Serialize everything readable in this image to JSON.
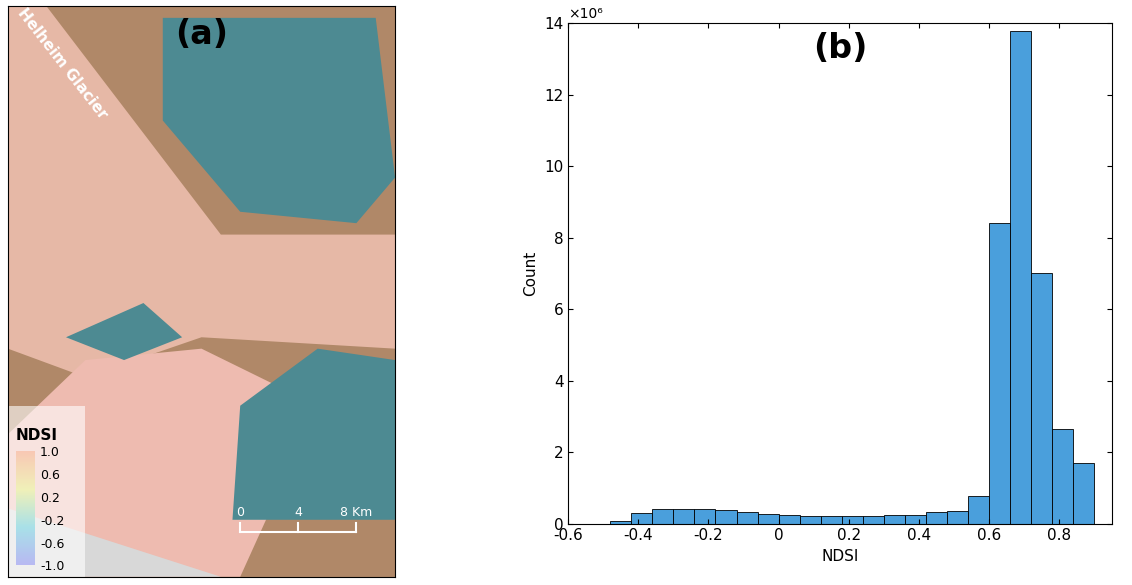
{
  "chart_data": [
    {
      "type": "map",
      "title": "(a)",
      "annotations": [
        "Helheim Glacier"
      ],
      "colorbar": {
        "label": "NDSI",
        "range": [
          -1.0,
          1.0
        ],
        "ticks": [
          {
            "value": 1.0,
            "label": "1.0"
          },
          0.6,
          0.2,
          -0.2,
          -0.6,
          {
            "value": -1.0,
            "label": "-1.0"
          }
        ]
      },
      "scale_bar": {
        "ticks": [
          0,
          4,
          {
            "value": 8,
            "label": "8 Km"
          }
        ]
      }
    },
    {
      "type": "histogram",
      "title": "(b)",
      "x_label": "NDSI",
      "y_label": "Count",
      "y_unit": "×10⁶",
      "bins": [
        -0.48,
        -0.42,
        -0.36,
        -0.3,
        -0.24,
        -0.18,
        -0.12,
        -0.06,
        0.0,
        0.06,
        0.12,
        0.18,
        0.24,
        0.3,
        0.36,
        0.42,
        0.48,
        0.54,
        0.6,
        0.66,
        0.72,
        0.78,
        0.84,
        0.9
      ],
      "counts": [
        0.07,
        0.3,
        0.42,
        0.42,
        0.4,
        0.37,
        0.33,
        0.27,
        0.23,
        0.21,
        0.2,
        0.2,
        0.21,
        0.23,
        0.25,
        0.32,
        0.35,
        0.78,
        8.4,
        13.8,
        7.0,
        2.65,
        1.7
      ],
      "color": "#4a9fdc",
      "xlim": [
        -0.6,
        0.95
      ],
      "xticks": [
        -0.6,
        -0.4,
        -0.2,
        0,
        0.2,
        0.4,
        0.6,
        0.8
      ],
      "ylim": [
        0,
        14
      ],
      "yticks": [
        0,
        2,
        4,
        6,
        8,
        10,
        12,
        14
      ]
    }
  ]
}
